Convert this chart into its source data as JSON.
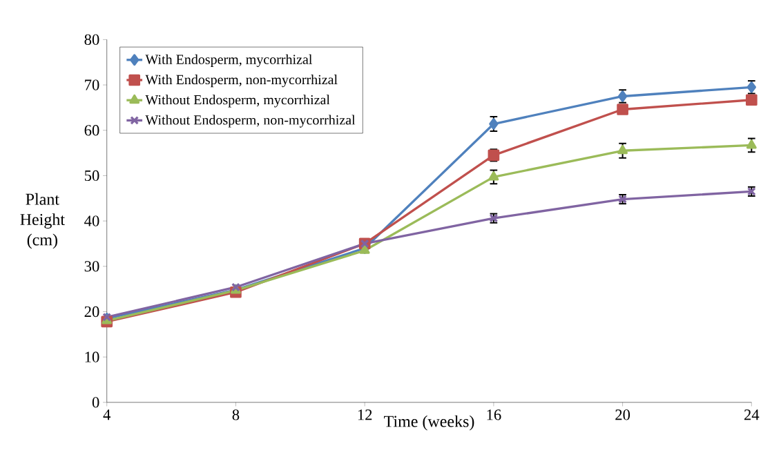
{
  "chart_data": {
    "type": "line",
    "xlabel": "Time (weeks)",
    "ylabel": "Plant Height (cm)",
    "x": [
      4,
      8,
      12,
      16,
      20,
      24
    ],
    "xlim": [
      4,
      24
    ],
    "xticks": [
      4,
      8,
      12,
      16,
      20,
      24
    ],
    "ylim": [
      0,
      80
    ],
    "yticks": [
      0,
      10,
      20,
      30,
      40,
      50,
      60,
      70,
      80
    ],
    "grid": false,
    "legend": "top left",
    "series": [
      {
        "name": "With Endosperm, mycorrhizal",
        "color": "#4f81bd",
        "marker": "diamond",
        "values": [
          18.5,
          24.8,
          34,
          61.4,
          67.5,
          69.5
        ],
        "errors": [
          null,
          null,
          null,
          1.6,
          1.4,
          1.4
        ]
      },
      {
        "name": "With Endosperm, non-mycorrhizal",
        "color": "#c0504d",
        "marker": "square",
        "values": [
          17.8,
          24.3,
          35,
          54.5,
          64.6,
          66.7
        ],
        "errors": [
          null,
          null,
          null,
          1.3,
          null,
          null
        ]
      },
      {
        "name": "Without Endosperm, mycorrhizal",
        "color": "#9bbb59",
        "marker": "triangle",
        "values": [
          18,
          24.7,
          33.5,
          49.7,
          55.5,
          56.7
        ],
        "errors": [
          null,
          null,
          null,
          1.5,
          1.6,
          1.5
        ]
      },
      {
        "name": "Without Endosperm, non-mycorrhizal",
        "color": "#8064a2",
        "marker": "cross",
        "values": [
          18.8,
          25.4,
          35,
          40.6,
          44.8,
          46.5
        ],
        "errors": [
          null,
          null,
          null,
          1,
          1,
          1
        ]
      }
    ]
  }
}
